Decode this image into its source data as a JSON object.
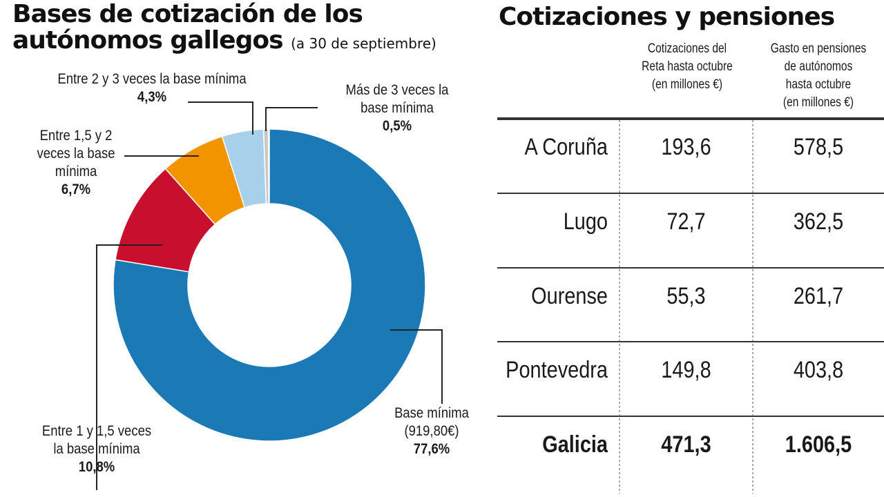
{
  "left": {
    "title": "Bases de cotización de los autónomos gallegos",
    "subtitle": "(a 30 de septiembre)"
  },
  "chart_data": {
    "type": "pie",
    "donut": true,
    "title": "Bases de cotización de los autónomos gallegos",
    "subtitle": "(a 30 de septiembre)",
    "slices": [
      {
        "label": "Base mínima (919,80€)",
        "l1": "Base mínima",
        "l2": "(919,80€)",
        "value": 77.6,
        "text": "77,6%",
        "color": "#1b79b6"
      },
      {
        "label": "Entre 1 y 1,5 veces la base mínima",
        "l1": "Entre 1 y 1,5 veces",
        "l2": "la base mínima",
        "value": 10.8,
        "text": "10,8%",
        "color": "#c8102e"
      },
      {
        "label": "Entre 1,5 y 2 veces la base mínima",
        "l1": "Entre 1,5 y 2",
        "l2": "veces la base",
        "l3": "mínima",
        "value": 6.7,
        "text": "6,7%",
        "color": "#f29400"
      },
      {
        "label": "Entre 2 y 3 veces la base mínima",
        "l1": "Entre 2 y 3 veces la base mínima",
        "value": 4.3,
        "text": "4,3%",
        "color": "#a8d0ea"
      },
      {
        "label": "Más de 3 veces la base mínima",
        "l1": "Más de 3 veces la",
        "l2": "base mínima",
        "value": 0.5,
        "text": "0,5%",
        "color": "#c9c9c9"
      }
    ]
  },
  "table": {
    "title": "Cotizaciones y pensiones",
    "headers": [
      "Cotizaciones del Reta hasta octubre (en millones €)",
      "Gasto en pensiones de autónomos hasta octubre (en millones €)"
    ],
    "h1": [
      "Cotizaciones del",
      "Reta hasta octubre",
      "(en millones €)"
    ],
    "h2": [
      "Gasto en pensiones",
      "de autónomos",
      "hasta octubre",
      "(en millones €)"
    ],
    "rows": [
      {
        "name": "A Coruña",
        "cot": "193,6",
        "gasto": "578,5"
      },
      {
        "name": "Lugo",
        "cot": "72,7",
        "gasto": "362,5"
      },
      {
        "name": "Ourense",
        "cot": "55,3",
        "gasto": "261,7"
      },
      {
        "name": "Pontevedra",
        "cot": "149,8",
        "gasto": "403,8"
      },
      {
        "name": "Galicia",
        "cot": "471,3",
        "gasto": "1.606,5"
      }
    ]
  }
}
